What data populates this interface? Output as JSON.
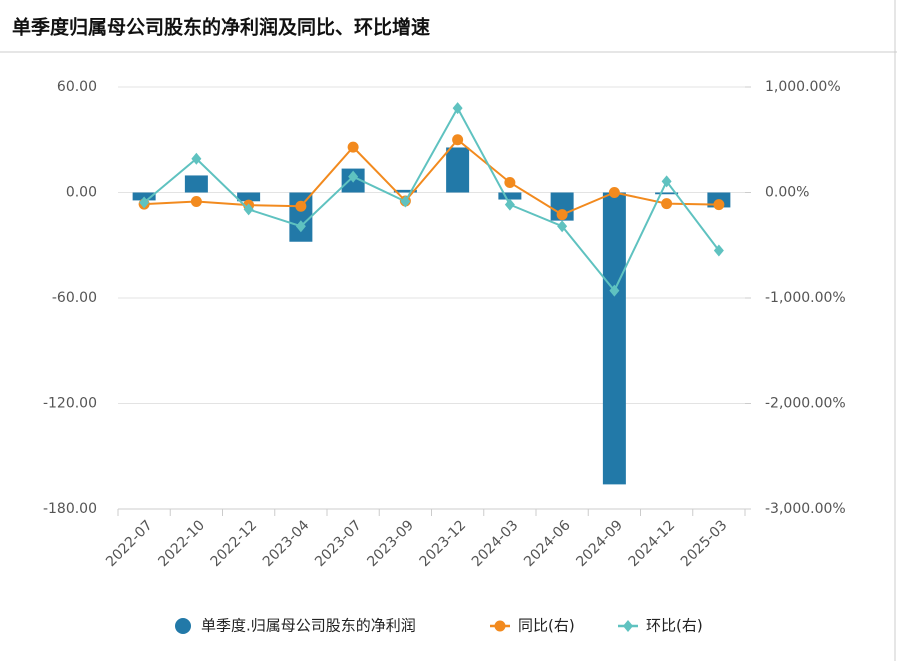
{
  "chart_data": {
    "type": "bar-line",
    "title": "单季度归属母公司股东的净利润及同比、环比增速",
    "categories": [
      "2022-07",
      "2022-10",
      "2022-12",
      "2023-04",
      "2023-07",
      "2023-09",
      "2023-12",
      "2024-03",
      "2024-06",
      "2024-09",
      "2024-12",
      "2025-03"
    ],
    "ylim": [
      -180,
      60
    ],
    "yticks": [
      {
        "value": 60,
        "label": "60.00"
      },
      {
        "value": 0,
        "label": "0.00"
      },
      {
        "value": -60,
        "label": "-60.00"
      },
      {
        "value": -120,
        "label": "-120.00"
      },
      {
        "value": -180,
        "label": "-180.00"
      }
    ],
    "y2lim": [
      -3000,
      1000
    ],
    "y2ticks": [
      {
        "value": 1000,
        "label": "1,000.00%"
      },
      {
        "value": 0,
        "label": "0.00%"
      },
      {
        "value": -1000,
        "label": "-1,000.00%"
      },
      {
        "value": -2000,
        "label": "-2,000.00%"
      },
      {
        "value": -3000,
        "label": "-3,000.00%"
      }
    ],
    "grid": true,
    "series": [
      {
        "name": "单季度.归属母公司股东的净利润",
        "type": "bar",
        "color": "#2279a8",
        "values": [
          -4.5,
          9.7,
          -5,
          -28,
          13.6,
          1.5,
          25.6,
          -4,
          -16,
          -166,
          -1,
          -8.5
        ]
      },
      {
        "name": "同比(右)",
        "type": "line",
        "marker": "circle",
        "axis": "y2",
        "color": "#f28a1e",
        "values": [
          -110,
          -85,
          -120,
          -130,
          430,
          -80,
          500,
          95,
          -210,
          0,
          -105,
          -115
        ]
      },
      {
        "name": "环比(右)",
        "type": "line",
        "marker": "diamond",
        "axis": "y2",
        "color": "#5fc2c0",
        "values": [
          -95,
          320,
          -160,
          -320,
          150,
          -85,
          800,
          -115,
          -320,
          -930,
          105,
          -550
        ]
      }
    ]
  }
}
